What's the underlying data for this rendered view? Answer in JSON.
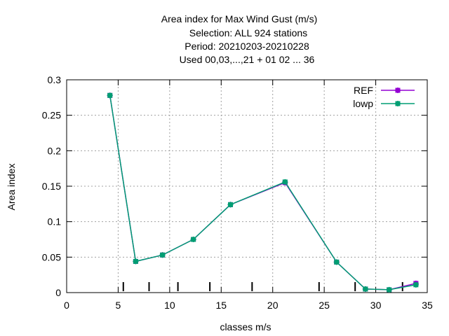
{
  "chart_data": {
    "type": "line",
    "title_lines": [
      "Area index  for Max Wind Gust (m/s)",
      "Selection: ALL    924 stations",
      "Period: 20210203-20210228",
      "Used  00,03,...,21  + 01 02 ... 36"
    ],
    "xlabel": "classes m/s",
    "ylabel": "Area index",
    "xlim": [
      0,
      35
    ],
    "ylim": [
      0,
      0.3
    ],
    "x_ticks": [
      0,
      5,
      10,
      15,
      20,
      25,
      30,
      35
    ],
    "y_ticks": [
      0,
      0.05,
      0.1,
      0.15,
      0.2,
      0.25,
      0.3
    ],
    "x_tick_labels": [
      "0",
      "5",
      "10",
      "15",
      "20",
      "25",
      "30",
      "35"
    ],
    "y_tick_labels": [
      "0",
      "0.05",
      "0.1",
      "0.15",
      "0.2",
      "0.25",
      "0.3"
    ],
    "grid": true,
    "legend_position": "top-right",
    "class_boundaries": [
      5.5,
      8,
      10.8,
      13.9,
      18,
      24.5,
      28,
      32.6
    ],
    "series": [
      {
        "name": "REF",
        "color": "#9400d3",
        "marker": "cross-square",
        "x": [
          4.2,
          6.7,
          9.3,
          12.3,
          15.9,
          21.2,
          26.2,
          29.0,
          31.3,
          33.9
        ],
        "y": [
          0.278,
          0.044,
          0.053,
          0.075,
          0.124,
          0.155,
          0.043,
          0.005,
          0.004,
          0.013
        ]
      },
      {
        "name": "lowp",
        "color": "#009e73",
        "marker": "cross-square",
        "x": [
          4.2,
          6.7,
          9.3,
          12.3,
          15.9,
          21.2,
          26.2,
          29.0,
          31.3,
          33.9
        ],
        "y": [
          0.278,
          0.044,
          0.053,
          0.075,
          0.124,
          0.156,
          0.043,
          0.005,
          0.004,
          0.011
        ]
      }
    ]
  }
}
